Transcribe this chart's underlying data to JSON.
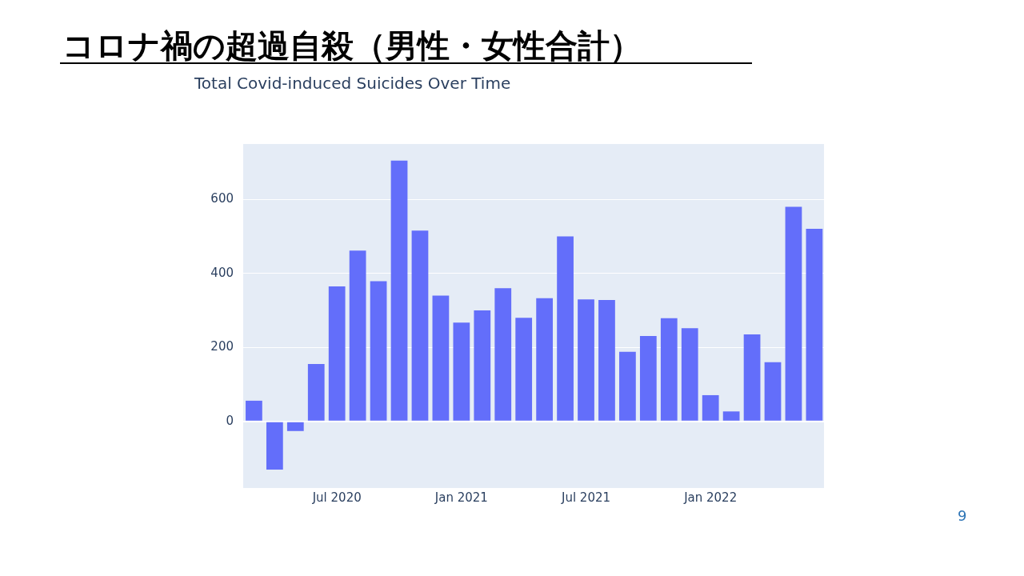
{
  "chart_data": {
    "type": "bar",
    "title": "コロナ禍の超過自殺（男性・女性合計）",
    "subtitle": "Total Covid-induced Suicides Over Time",
    "x": [
      "2020-03",
      "2020-04",
      "2020-05",
      "2020-06",
      "2020-07",
      "2020-08",
      "2020-09",
      "2020-10",
      "2020-11",
      "2020-12",
      "2021-01",
      "2021-02",
      "2021-03",
      "2021-04",
      "2021-05",
      "2021-06",
      "2021-07",
      "2021-08",
      "2021-09",
      "2021-10",
      "2021-11",
      "2021-12",
      "2022-01",
      "2022-02",
      "2022-03",
      "2022-04",
      "2022-05",
      "2022-06"
    ],
    "values": [
      56,
      -130,
      -26,
      155,
      365,
      462,
      379,
      705,
      516,
      340,
      267,
      300,
      360,
      280,
      333,
      500,
      330,
      328,
      188,
      231,
      279,
      252,
      71,
      27,
      235,
      160,
      580,
      521
    ],
    "color": "#636efa",
    "xlim": [
      "2020-02-15",
      "2022-06-15"
    ],
    "xticks": [
      {
        "value": "2020-07",
        "label": "Jul 2020"
      },
      {
        "value": "2021-01",
        "label": "Jan 2021"
      },
      {
        "value": "2021-07",
        "label": "Jul 2021"
      },
      {
        "value": "2022-01",
        "label": "Jan 2022"
      }
    ],
    "ylim": [
      -180,
      750
    ],
    "yticks": [
      0,
      200,
      400,
      600
    ],
    "grid": "y",
    "legend": false,
    "annotations": [
      "9"
    ]
  }
}
